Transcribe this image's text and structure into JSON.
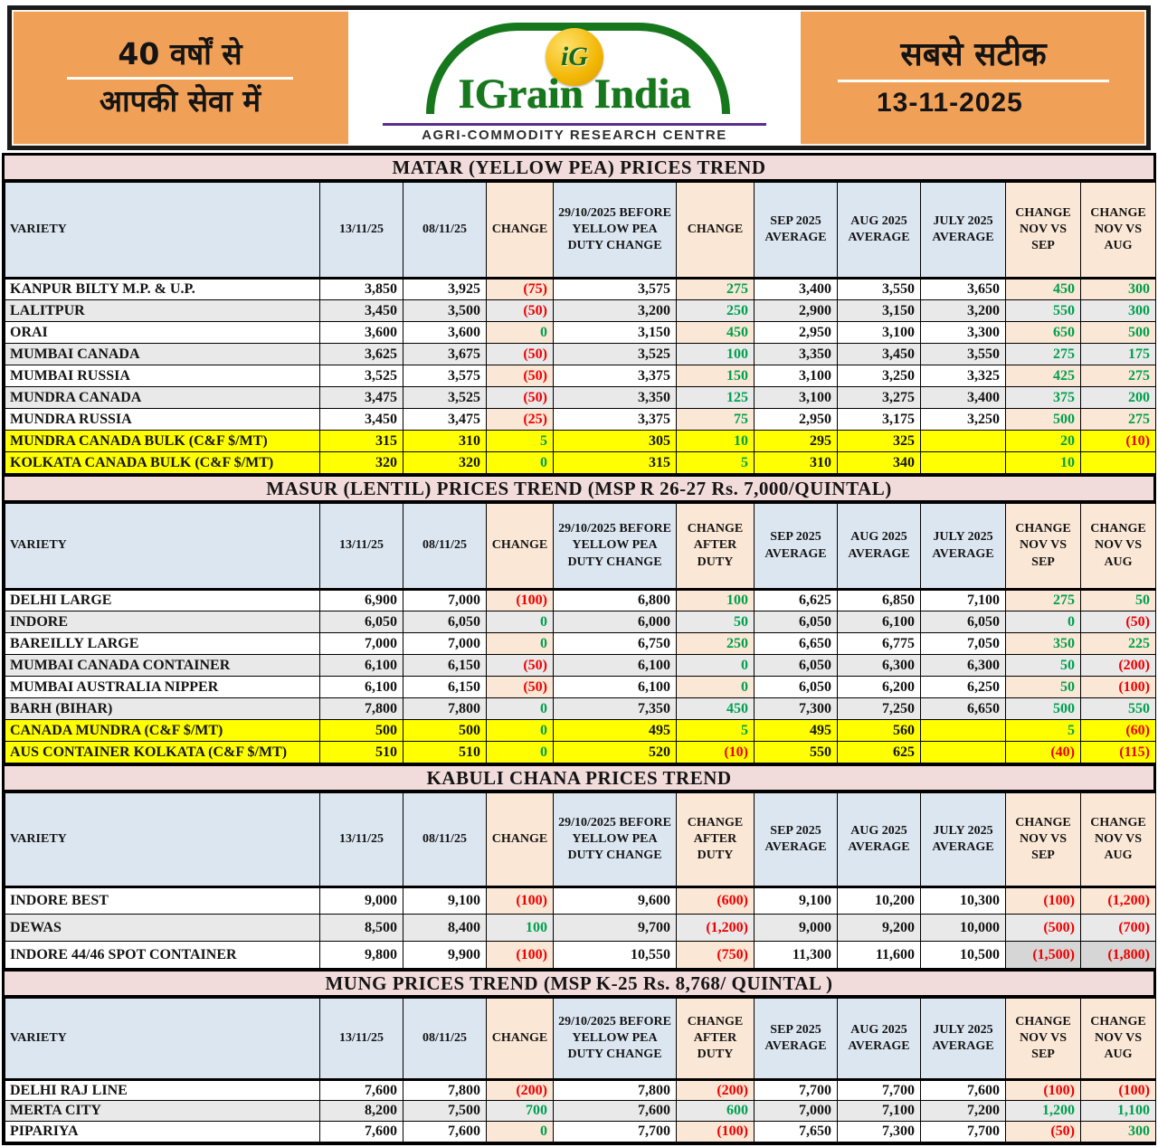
{
  "banner": {
    "left": {
      "line1": "40 वर्षों से",
      "line2": "आपकी सेवा में"
    },
    "logo": {
      "monogram": "iG",
      "title": "IGrain India",
      "subtitle": "AGRI-COMMODITY RESEARCH CENTRE"
    },
    "right": {
      "line1": "सबसे सटीक",
      "date": "13-11-2025"
    }
  },
  "colors": {
    "banner_orange": "#F0A057",
    "title_pink": "#F2DCDB",
    "header_blue": "#DCE6F1",
    "header_peach": "#FBE7D5",
    "row_alt_gray": "#E9E9E9",
    "highlight_yellow": "#FFFF00",
    "positive_green": "#00A04E",
    "negative_red": "#EE0000",
    "logo_green": "#17771d",
    "logo_underline_purple": "#5B2D8E",
    "muted_gray_cell": "#D6D6D6"
  },
  "tables": [
    {
      "id": "matar",
      "title": "MATAR (YELLOW PEA) PRICES TREND",
      "columns": [
        "VARIETY",
        "13/11/25",
        "08/11/25",
        "CHANGE",
        "29/10/2025 BEFORE YELLOW PEA DUTY CHANGE",
        "CHANGE",
        "SEP 2025 AVERAGE",
        "AUG 2025 AVERAGE",
        "JULY 2025 AVERAGE",
        "CHANGE NOV VS SEP",
        "CHANGE NOV VS AUG"
      ],
      "change_cols": [
        3,
        5,
        9,
        10
      ],
      "rows": [
        {
          "style": "normal",
          "cells": [
            "KANPUR BILTY M.P.  & U.P.",
            "3,850",
            "3,925",
            "(75)",
            "3,575",
            "275",
            "3,400",
            "3,550",
            "3,650",
            "450",
            "300"
          ]
        },
        {
          "style": "normal",
          "cells": [
            "LALITPUR",
            "3,450",
            "3,500",
            "(50)",
            "3,200",
            "250",
            "2,900",
            "3,150",
            "3,200",
            "550",
            "300"
          ]
        },
        {
          "style": "normal",
          "cells": [
            "ORAI",
            "3,600",
            "3,600",
            "0",
            "3,150",
            "450",
            "2,950",
            "3,100",
            "3,300",
            "650",
            "500"
          ]
        },
        {
          "style": "normal",
          "cells": [
            "MUMBAI CANADA",
            "3,625",
            "3,675",
            "(50)",
            "3,525",
            "100",
            "3,350",
            "3,450",
            "3,550",
            "275",
            "175"
          ]
        },
        {
          "style": "normal",
          "cells": [
            "MUMBAI RUSSIA",
            "3,525",
            "3,575",
            "(50)",
            "3,375",
            "150",
            "3,100",
            "3,250",
            "3,325",
            "425",
            "275"
          ]
        },
        {
          "style": "normal",
          "cells": [
            "MUNDRA CANADA",
            "3,475",
            "3,525",
            "(50)",
            "3,350",
            "125",
            "3,100",
            "3,275",
            "3,400",
            "375",
            "200"
          ]
        },
        {
          "style": "normal",
          "cells": [
            "MUNDRA RUSSIA",
            "3,450",
            "3,475",
            "(25)",
            "3,375",
            "75",
            "2,950",
            "3,175",
            "3,250",
            "500",
            "275"
          ]
        },
        {
          "style": "yellow",
          "cells": [
            "MUNDRA CANADA BULK (C&F $/MT)",
            "315",
            "310",
            "5",
            "305",
            "10",
            "295",
            "325",
            "",
            "20",
            "(10)"
          ]
        },
        {
          "style": "yellow",
          "cells": [
            "KOLKATA CANADA BULK (C&F $/MT)",
            "320",
            "320",
            "0",
            "315",
            "5",
            "310",
            "340",
            "",
            "10",
            ""
          ]
        }
      ]
    },
    {
      "id": "masur",
      "title": "MASUR (LENTIL) PRICES TREND  (MSP R 26-27 Rs. 7,000/QUINTAL)",
      "columns": [
        "VARIETY",
        "13/11/25",
        "08/11/25",
        "CHANGE",
        "29/10/2025 BEFORE YELLOW PEA DUTY CHANGE",
        "CHANGE AFTER DUTY",
        "SEP 2025 AVERAGE",
        "AUG 2025 AVERAGE",
        "JULY 2025 AVERAGE",
        "CHANGE NOV VS SEP",
        "CHANGE NOV VS AUG"
      ],
      "change_cols": [
        3,
        5,
        9,
        10
      ],
      "rows": [
        {
          "style": "normal",
          "cells": [
            "DELHI LARGE",
            "6,900",
            "7,000",
            "(100)",
            "6,800",
            "100",
            "6,625",
            "6,850",
            "7,100",
            "275",
            "50"
          ]
        },
        {
          "style": "normal",
          "cells": [
            "INDORE",
            "6,050",
            "6,050",
            "0",
            "6,000",
            "50",
            "6,050",
            "6,100",
            "6,050",
            "0",
            "(50)"
          ]
        },
        {
          "style": "normal",
          "cells": [
            "BAREILLY LARGE",
            "7,000",
            "7,000",
            "0",
            "6,750",
            "250",
            "6,650",
            "6,775",
            "7,050",
            "350",
            "225"
          ]
        },
        {
          "style": "normal",
          "cells": [
            "MUMBAI CANADA CONTAINER",
            "6,100",
            "6,150",
            "(50)",
            "6,100",
            "0",
            "6,050",
            "6,300",
            "6,300",
            "50",
            "(200)"
          ]
        },
        {
          "style": "normal",
          "cells": [
            "MUMBAI AUSTRALIA NIPPER",
            "6,100",
            "6,150",
            "(50)",
            "6,100",
            "0",
            "6,050",
            "6,200",
            "6,250",
            "50",
            "(100)"
          ]
        },
        {
          "style": "normal",
          "cells": [
            "BARH (BIHAR)",
            "7,800",
            "7,800",
            "0",
            "7,350",
            "450",
            "7,300",
            "7,250",
            "6,650",
            "500",
            "550"
          ]
        },
        {
          "style": "yellow",
          "cells": [
            "CANADA MUNDRA (C&F $/MT)",
            "500",
            "500",
            "0",
            "495",
            "5",
            "495",
            "560",
            "",
            "5",
            "(60)"
          ]
        },
        {
          "style": "yellow",
          "cells": [
            "AUS CONTAINER KOLKATA (C&F $/MT)",
            "510",
            "510",
            "0",
            "520",
            "(10)",
            "550",
            "625",
            "",
            "(40)",
            "(115)"
          ]
        }
      ]
    },
    {
      "id": "kabuli",
      "title": "KABULI CHANA PRICES TREND",
      "columns": [
        "VARIETY",
        "13/11/25",
        "08/11/25",
        "CHANGE",
        "29/10/2025 BEFORE YELLOW PEA DUTY CHANGE",
        "CHANGE AFTER DUTY",
        "SEP 2025 AVERAGE",
        "AUG 2025 AVERAGE",
        "JULY 2025 AVERAGE",
        "CHANGE NOV VS SEP",
        "CHANGE NOV VS AUG"
      ],
      "change_cols": [
        3,
        5,
        9,
        10
      ],
      "rows": [
        {
          "style": "normal",
          "cells": [
            "INDORE BEST",
            "9,000",
            "9,100",
            "(100)",
            "9,600",
            "(600)",
            "9,100",
            "10,200",
            "10,300",
            "(100)",
            "(1,200)"
          ]
        },
        {
          "style": "normal",
          "cells": [
            "DEWAS",
            "8,500",
            "8,400",
            "100",
            "9,700",
            "(1,200)",
            "9,000",
            "9,200",
            "10,000",
            "(500)",
            "(700)"
          ]
        },
        {
          "style": "normal",
          "gray_cells": [
            9,
            10
          ],
          "cells": [
            "INDORE 44/46 SPOT CONTAINER",
            "9,800",
            "9,900",
            "(100)",
            "10,550",
            "(750)",
            "11,300",
            "11,600",
            "10,500",
            "(1,500)",
            "(1,800)"
          ]
        }
      ]
    },
    {
      "id": "mung",
      "title": "MUNG PRICES TREND  (MSP K-25 Rs. 8,768/ QUINTAL )",
      "columns": [
        "VARIETY",
        "13/11/25",
        "08/11/25",
        "CHANGE",
        "29/10/2025 BEFORE YELLOW PEA DUTY CHANGE",
        "CHANGE AFTER DUTY",
        "SEP 2025 AVERAGE",
        "AUG 2025 AVERAGE",
        "JULY 2025 AVERAGE",
        "CHANGE NOV VS SEP",
        "CHANGE NOV VS AUG"
      ],
      "change_cols": [
        3,
        5,
        9,
        10
      ],
      "rows": [
        {
          "style": "normal",
          "cells": [
            "DELHI RAJ LINE",
            "7,600",
            "7,800",
            "(200)",
            "7,800",
            "(200)",
            "7,700",
            "7,700",
            "7,600",
            "(100)",
            "(100)"
          ]
        },
        {
          "style": "normal",
          "cells": [
            "MERTA CITY",
            "8,200",
            "7,500",
            "700",
            "7,600",
            "600",
            "7,000",
            "7,100",
            "7,200",
            "1,200",
            "1,100"
          ]
        },
        {
          "style": "normal",
          "cells": [
            "PIPARIYA",
            "7,600",
            "7,600",
            "0",
            "7,700",
            "(100)",
            "7,650",
            "7,300",
            "7,700",
            "(50)",
            "300"
          ]
        }
      ]
    }
  ]
}
